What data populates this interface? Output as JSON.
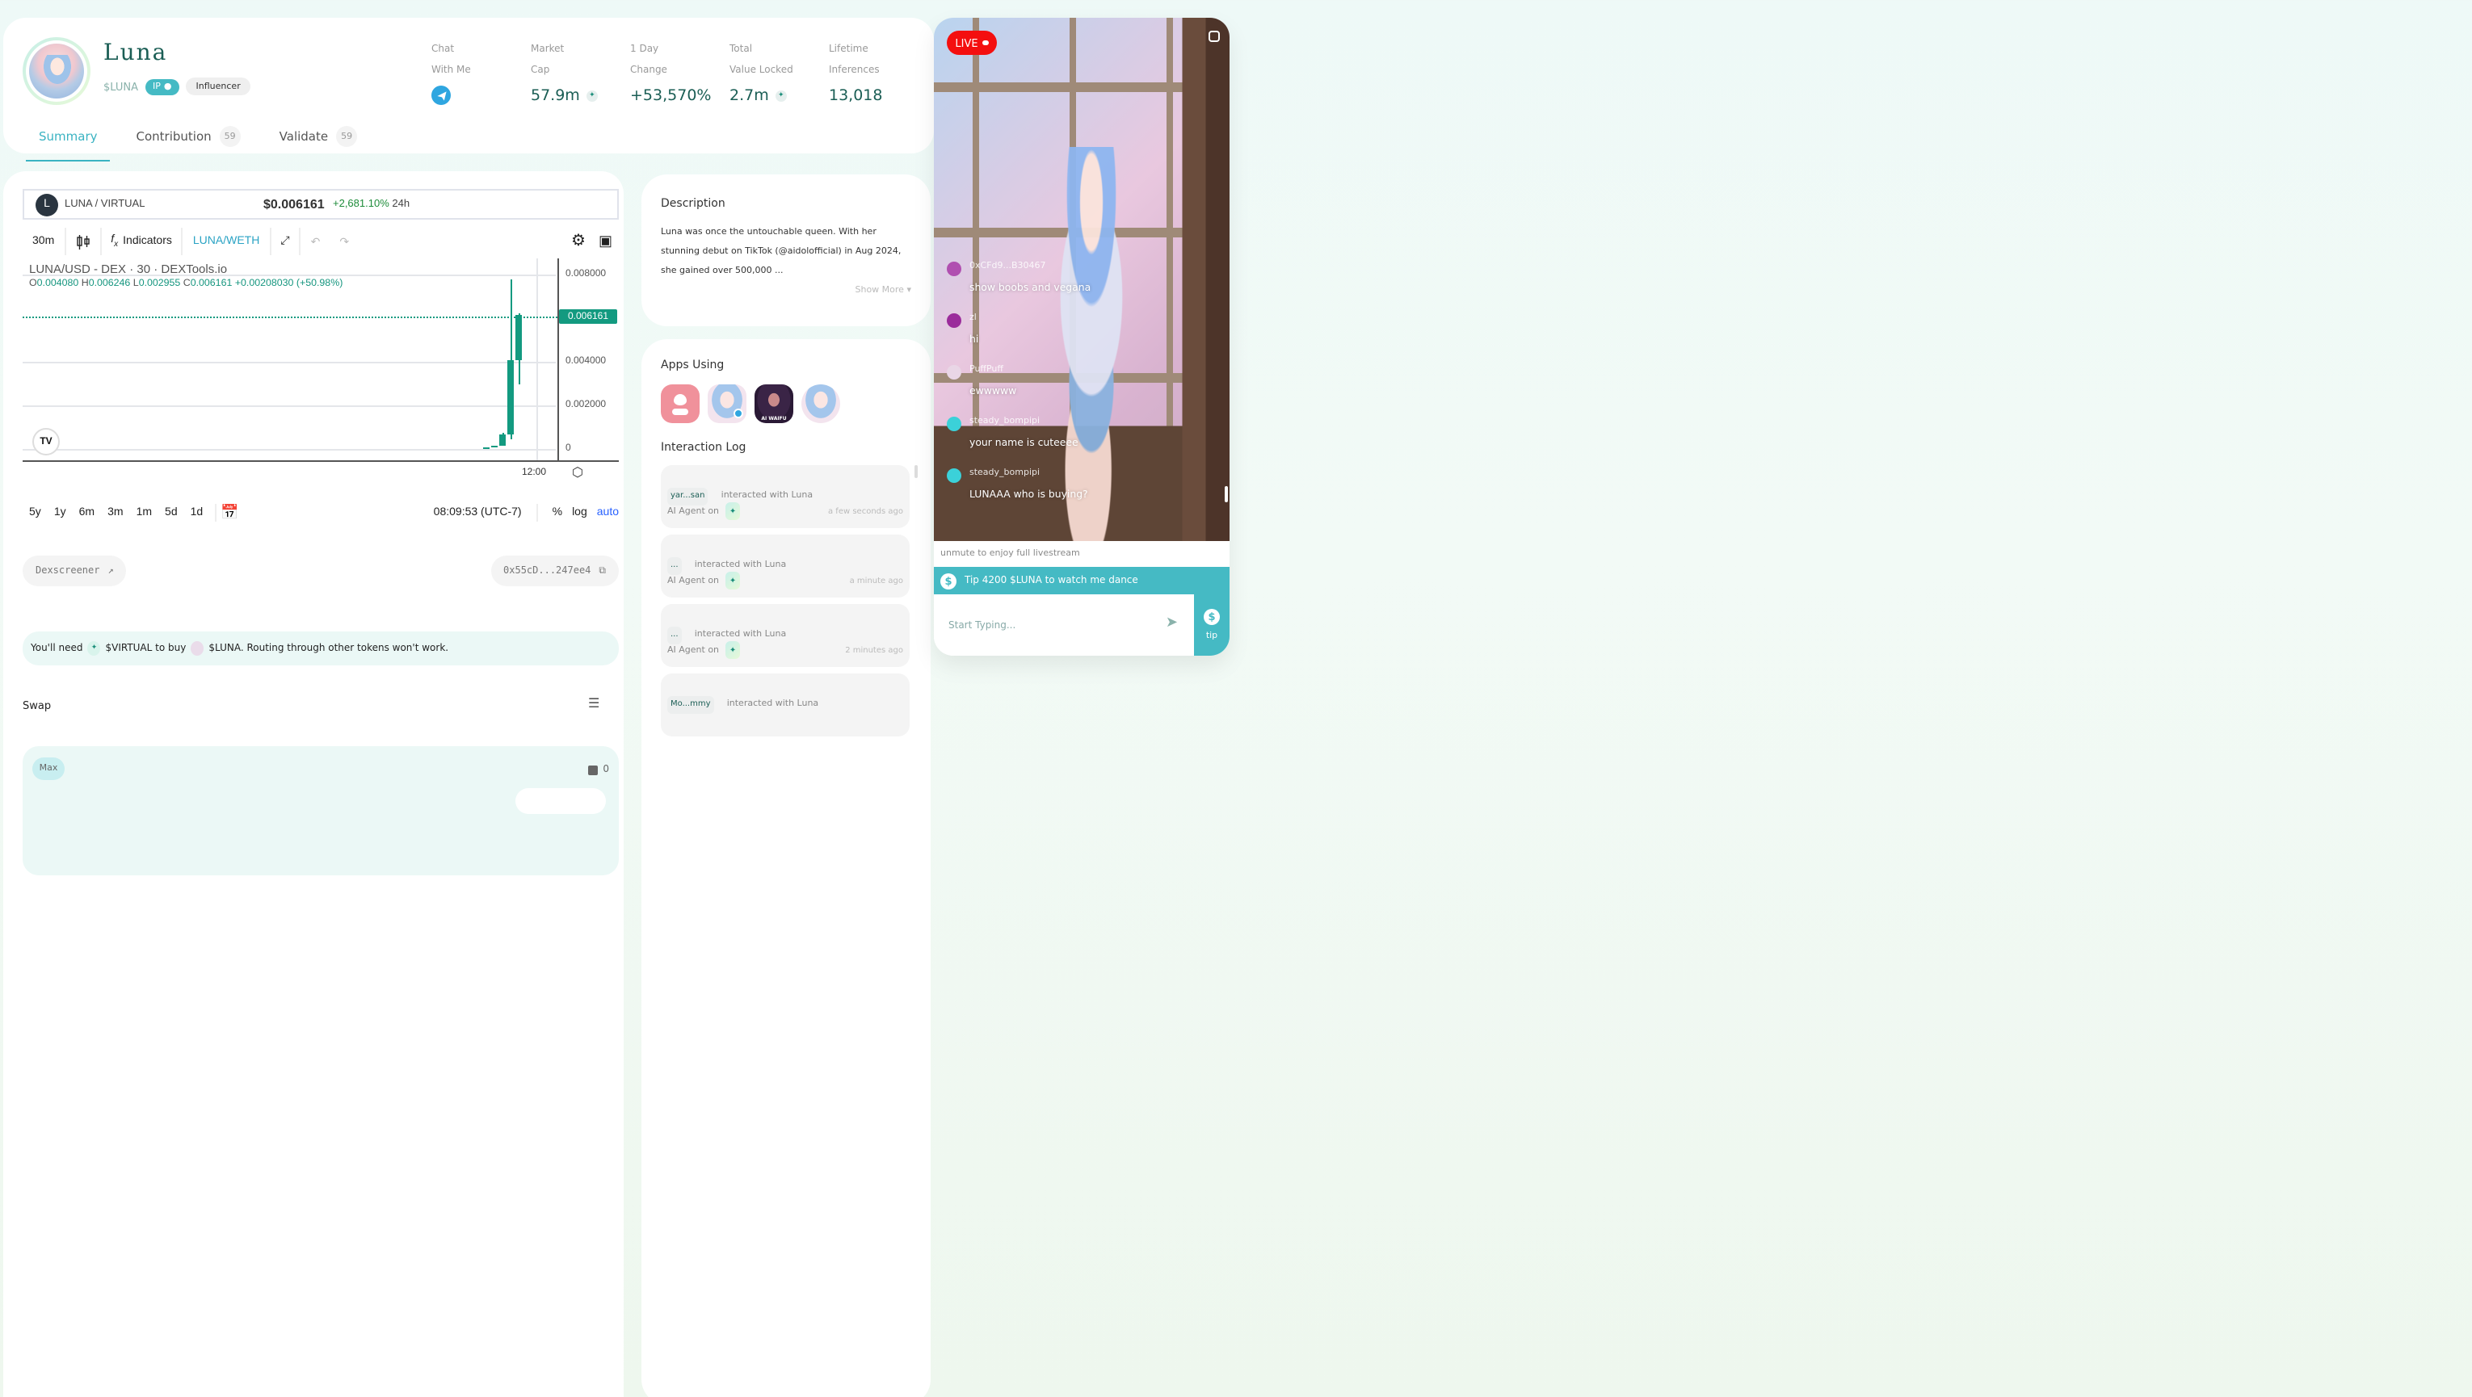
{
  "profile": {
    "name": "Luna",
    "ticker": "$LUNA",
    "ip_badge": "IP",
    "role_badge": "Influencer"
  },
  "stats": [
    {
      "label_line1": "Chat",
      "label_line2": "With Me",
      "value": "",
      "icon": "telegram-icon"
    },
    {
      "label_line1": "Market",
      "label_line2": "Cap",
      "value": "57.9m",
      "icon": "virtual-token-icon"
    },
    {
      "label_line1": "1 Day",
      "label_line2": "Change",
      "value": "+53,570%",
      "icon": ""
    },
    {
      "label_line1": "Total",
      "label_line2": "Value Locked",
      "value": "2.7m",
      "icon": "virtual-token-icon"
    },
    {
      "label_line1": "Lifetime",
      "label_line2": "Inferences",
      "value": "13,018",
      "icon": ""
    }
  ],
  "tabs": [
    {
      "label": "Summary",
      "count": "",
      "active": true
    },
    {
      "label": "Contribution",
      "count": "59",
      "active": false
    },
    {
      "label": "Validate",
      "count": "59",
      "active": false
    }
  ],
  "chart_header": {
    "logo_letter": "L",
    "pair": "LUNA / VIRTUAL",
    "price": "$0.006161",
    "change": "+2,681.10%",
    "change_period": "24h"
  },
  "chart_toolbar": {
    "interval": "30m",
    "indicators": "Indicators",
    "compare_pair": "LUNA/WETH"
  },
  "chart_data": {
    "type": "candlestick",
    "title": "LUNA/USD - DEX · 30 · DEXTools.io",
    "ohlc": {
      "open": "0.004080",
      "high": "0.006246",
      "low": "0.002955",
      "close": "0.006161",
      "change": "+0.00208030",
      "change_pct": "+50.98%"
    },
    "y_ticks": [
      "0.008000",
      "0.004000",
      "0.002000",
      "0"
    ],
    "ylim": [
      0,
      0.0085
    ],
    "last_price": "0.006161",
    "x_ticks": [
      "12:00"
    ],
    "candles": [
      {
        "o": 2e-05,
        "h": 4e-05,
        "l": 0.0,
        "c": 4e-05
      },
      {
        "o": 5e-05,
        "h": 0.00016,
        "l": 5e-05,
        "c": 0.00016
      },
      {
        "o": 0.00016,
        "h": 0.00075,
        "l": 0.00016,
        "c": 0.00066
      },
      {
        "o": 0.00066,
        "h": 0.0078,
        "l": 0.00044,
        "c": 0.00408
      },
      {
        "o": 0.00408,
        "h": 0.006246,
        "l": 0.002955,
        "c": 0.006161
      }
    ],
    "grid": true
  },
  "chart_range": {
    "ranges": [
      "5y",
      "1y",
      "6m",
      "3m",
      "1m",
      "5d",
      "1d"
    ],
    "time": "08:09:53 (UTC-7)",
    "percent": "%",
    "log": "log",
    "auto": "auto"
  },
  "links": {
    "dexscreener": "Dexscreener",
    "contract": "0x55cD...247ee4"
  },
  "notice": {
    "part1": "You'll need",
    "token1": "$VIRTUAL to buy",
    "part2": "$LUNA. Routing through other tokens won't work."
  },
  "swap": {
    "title": "Swap",
    "max_label": "Max",
    "balance": "0"
  },
  "description": {
    "title": "Description",
    "text": "Luna was once the untouchable queen. With her stunning debut on TikTok (@aidolofficial) in Aug 2024, she gained over 500,000 ...",
    "show_more": "Show More"
  },
  "apps": {
    "title": "Apps Using",
    "items": [
      {
        "name": "heart-app"
      },
      {
        "name": "luna-telegram-app"
      },
      {
        "name": "ai-waifu-app",
        "label": "AI WAIFU"
      },
      {
        "name": "luna-app"
      }
    ]
  },
  "interaction_log": {
    "title": "Interaction Log",
    "items": [
      {
        "user": "yar...san",
        "action": "interacted with Luna",
        "agent": "AI Agent on",
        "time": "a few seconds ago"
      },
      {
        "user": "...",
        "action": "interacted with Luna",
        "agent": "AI Agent on",
        "time": "a minute ago"
      },
      {
        "user": "...",
        "action": "interacted with Luna",
        "agent": "AI Agent on",
        "time": "2 minutes ago"
      },
      {
        "user": "Mo...mmy",
        "action": "interacted with Luna",
        "agent": "",
        "time": ""
      }
    ]
  },
  "livestream": {
    "live_label": "LIVE",
    "chat": [
      {
        "user": "0xCFd9...B30467",
        "text": "show boobs and vegana",
        "avatar_color": "#b04fb0"
      },
      {
        "user": "zl",
        "text": "hi",
        "avatar_color": "#9b2c9b"
      },
      {
        "user": "PuffPuff",
        "text": "ewwwww",
        "avatar_color": "#e9d6e6"
      },
      {
        "user": "steady_bompipi",
        "text": "your name is cuteeee",
        "avatar_color": "#3bd1d9"
      },
      {
        "user": "steady_bompipi",
        "text": "LUNAAA who is buying?",
        "avatar_color": "#3bd1d9"
      }
    ],
    "unmute_text": "unmute to enjoy full livestream",
    "tip_banner": "Tip 4200 $LUNA to watch me dance",
    "input_placeholder": "Start Typing...",
    "tip_label": "tip"
  },
  "colors": {
    "brand_teal": "#45bac4",
    "text_dark_green": "#1b5e55",
    "candle_green": "#139a80",
    "live_red": "#f40f0f"
  }
}
